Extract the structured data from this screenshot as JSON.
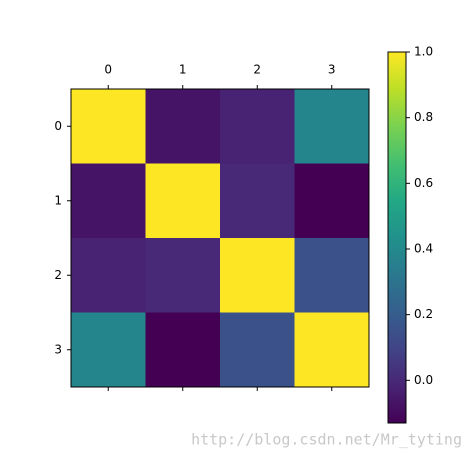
{
  "chart_data": {
    "type": "heatmap",
    "xticks": [
      0,
      1,
      2,
      3
    ],
    "yticks": [
      0,
      1,
      2,
      3
    ],
    "values": [
      [
        1.0,
        -0.07,
        -0.02,
        0.38
      ],
      [
        -0.07,
        1.0,
        0.0,
        -0.13
      ],
      [
        -0.02,
        0.0,
        1.0,
        0.15
      ],
      [
        0.38,
        -0.13,
        0.15,
        1.0
      ]
    ],
    "colormap": "viridis",
    "clim": [
      -0.13,
      1.0
    ],
    "colorbar_ticks": [
      {
        "value": 0.0,
        "label": "0.0"
      },
      {
        "value": 0.2,
        "label": "0.2"
      },
      {
        "value": 0.4,
        "label": "0.4"
      },
      {
        "value": 0.6,
        "label": "0.6"
      },
      {
        "value": 0.8,
        "label": "0.8"
      },
      {
        "value": 1.0,
        "label": "1.0"
      }
    ]
  },
  "watermark": "http://blog.csdn.net/Mr_tyting"
}
